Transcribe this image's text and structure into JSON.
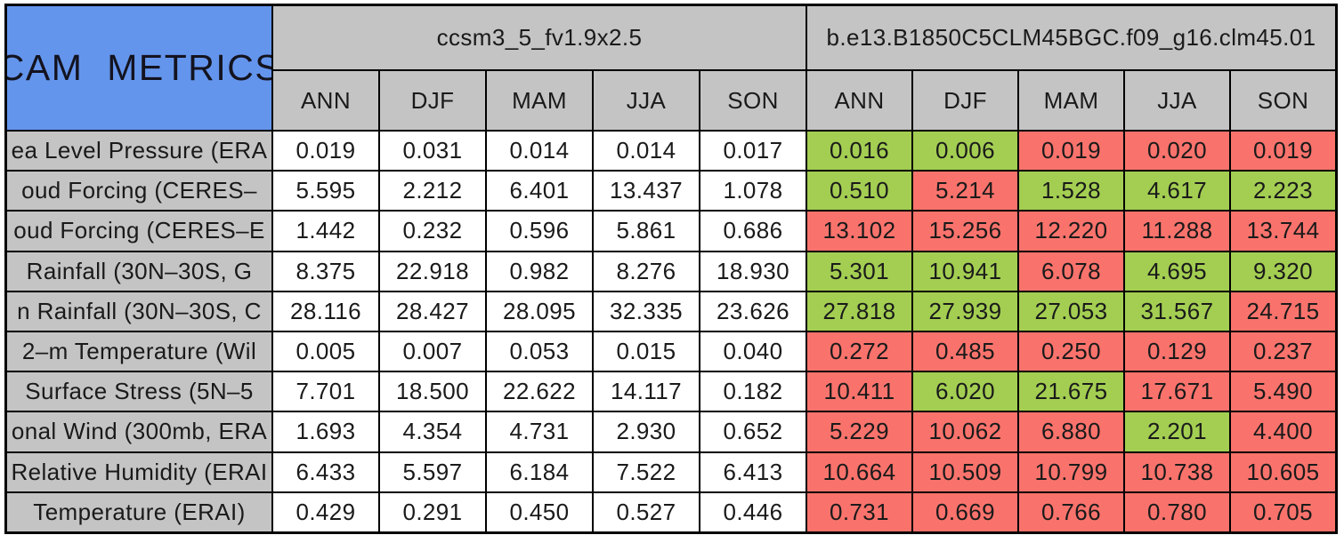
{
  "chart_data": {
    "type": "table",
    "title": "CAM METRICS",
    "column_groups": [
      "ccsm3_5_fv1.9x2.5",
      "b.e13.B1850C5CLM45BGC.f09_g16.clm45.01"
    ],
    "columns": [
      "ANN",
      "DJF",
      "MAM",
      "JJA",
      "SON"
    ],
    "rows": [
      {
        "label": "ea Level Pressure (ERA",
        "group1": [
          "0.019",
          "0.031",
          "0.014",
          "0.014",
          "0.017"
        ],
        "group2": [
          {
            "value": "0.016",
            "status": "green"
          },
          {
            "value": "0.006",
            "status": "green"
          },
          {
            "value": "0.019",
            "status": "red"
          },
          {
            "value": "0.020",
            "status": "red"
          },
          {
            "value": "0.019",
            "status": "red"
          }
        ]
      },
      {
        "label": "oud Forcing (CERES–",
        "group1": [
          "5.595",
          "2.212",
          "6.401",
          "13.437",
          "1.078"
        ],
        "group2": [
          {
            "value": "0.510",
            "status": "green"
          },
          {
            "value": "5.214",
            "status": "red"
          },
          {
            "value": "1.528",
            "status": "green"
          },
          {
            "value": "4.617",
            "status": "green"
          },
          {
            "value": "2.223",
            "status": "green"
          }
        ]
      },
      {
        "label": "oud Forcing (CERES–E",
        "group1": [
          "1.442",
          "0.232",
          "0.596",
          "5.861",
          "0.686"
        ],
        "group2": [
          {
            "value": "13.102",
            "status": "red"
          },
          {
            "value": "15.256",
            "status": "red"
          },
          {
            "value": "12.220",
            "status": "red"
          },
          {
            "value": "11.288",
            "status": "red"
          },
          {
            "value": "13.744",
            "status": "red"
          }
        ]
      },
      {
        "label": "Rainfall (30N–30S, G",
        "group1": [
          "8.375",
          "22.918",
          "0.982",
          "8.276",
          "18.930"
        ],
        "group2": [
          {
            "value": "5.301",
            "status": "green"
          },
          {
            "value": "10.941",
            "status": "green"
          },
          {
            "value": "6.078",
            "status": "red"
          },
          {
            "value": "4.695",
            "status": "green"
          },
          {
            "value": "9.320",
            "status": "green"
          }
        ]
      },
      {
        "label": "n Rainfall (30N–30S, C",
        "group1": [
          "28.116",
          "28.427",
          "28.095",
          "32.335",
          "23.626"
        ],
        "group2": [
          {
            "value": "27.818",
            "status": "green"
          },
          {
            "value": "27.939",
            "status": "green"
          },
          {
            "value": "27.053",
            "status": "green"
          },
          {
            "value": "31.567",
            "status": "green"
          },
          {
            "value": "24.715",
            "status": "red"
          }
        ]
      },
      {
        "label": "2–m Temperature (Wil",
        "group1": [
          "0.005",
          "0.007",
          "0.053",
          "0.015",
          "0.040"
        ],
        "group2": [
          {
            "value": "0.272",
            "status": "red"
          },
          {
            "value": "0.485",
            "status": "red"
          },
          {
            "value": "0.250",
            "status": "red"
          },
          {
            "value": "0.129",
            "status": "red"
          },
          {
            "value": "0.237",
            "status": "red"
          }
        ]
      },
      {
        "label": "Surface Stress (5N–5",
        "group1": [
          "7.701",
          "18.500",
          "22.622",
          "14.117",
          "0.182"
        ],
        "group2": [
          {
            "value": "10.411",
            "status": "red"
          },
          {
            "value": "6.020",
            "status": "green"
          },
          {
            "value": "21.675",
            "status": "green"
          },
          {
            "value": "17.671",
            "status": "red"
          },
          {
            "value": "5.490",
            "status": "red"
          }
        ]
      },
      {
        "label": "onal Wind (300mb, ERA",
        "group1": [
          "1.693",
          "4.354",
          "4.731",
          "2.930",
          "0.652"
        ],
        "group2": [
          {
            "value": "5.229",
            "status": "red"
          },
          {
            "value": "10.062",
            "status": "red"
          },
          {
            "value": "6.880",
            "status": "red"
          },
          {
            "value": "2.201",
            "status": "green"
          },
          {
            "value": "4.400",
            "status": "red"
          }
        ]
      },
      {
        "label": "Relative Humidity (ERAI",
        "group1": [
          "6.433",
          "5.597",
          "6.184",
          "7.522",
          "6.413"
        ],
        "group2": [
          {
            "value": "10.664",
            "status": "red"
          },
          {
            "value": "10.509",
            "status": "red"
          },
          {
            "value": "10.799",
            "status": "red"
          },
          {
            "value": "10.738",
            "status": "red"
          },
          {
            "value": "10.605",
            "status": "red"
          }
        ]
      },
      {
        "label": "Temperature (ERAI)",
        "group1": [
          "0.429",
          "0.291",
          "0.450",
          "0.527",
          "0.446"
        ],
        "group2": [
          {
            "value": "0.731",
            "status": "red"
          },
          {
            "value": "0.669",
            "status": "red"
          },
          {
            "value": "0.766",
            "status": "red"
          },
          {
            "value": "0.780",
            "status": "red"
          },
          {
            "value": "0.705",
            "status": "red"
          }
        ]
      }
    ],
    "layout": {
      "header_rows": 2,
      "seasons_per_group": 5,
      "group2_cells_highlighted": true
    }
  },
  "colors": {
    "title_bg_blue": "#6495ED",
    "header_bg_gray": "#C4C4C4",
    "grid_line_black": "#000000",
    "highlight_green": "#A3CE52",
    "highlight_red": "#F9736C",
    "plain_cell_white": "#FFFFFF"
  }
}
